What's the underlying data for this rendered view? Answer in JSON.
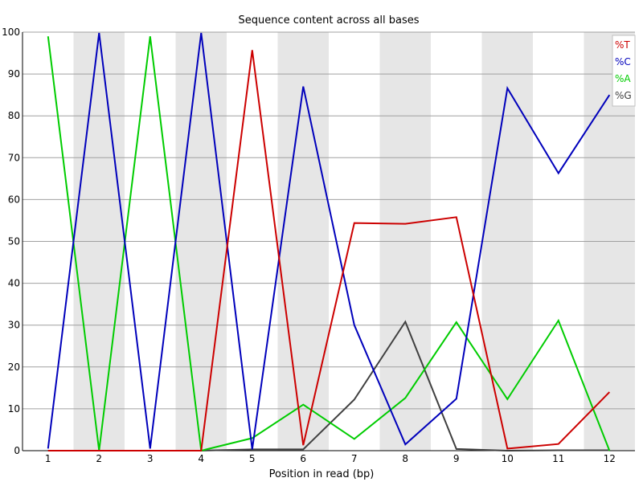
{
  "chart_data": {
    "type": "line",
    "title": "Sequence content across all bases",
    "xlabel": "Position in read (bp)",
    "ylabel": "",
    "x": [
      "1",
      "2",
      "3",
      "4",
      "5",
      "6",
      "7",
      "8",
      "9",
      "10",
      "11",
      "12"
    ],
    "ylim": [
      0,
      100
    ],
    "yticks": [
      "0",
      "10",
      "20",
      "30",
      "40",
      "50",
      "60",
      "70",
      "80",
      "90",
      "100"
    ],
    "grid": true,
    "legend_position": "top-right",
    "series": [
      {
        "name": "%T",
        "color": "#cc0000",
        "values": [
          0,
          0,
          0,
          0,
          95.7,
          1.3,
          54.4,
          54.2,
          55.8,
          0.5,
          1.6,
          14.0
        ]
      },
      {
        "name": "%C",
        "color": "#0000bb",
        "values": [
          0.5,
          99.8,
          0.5,
          99.8,
          0.3,
          87.0,
          30.0,
          1.5,
          12.4,
          86.6,
          66.3,
          85.0
        ]
      },
      {
        "name": "%A",
        "color": "#00cc00",
        "values": [
          99.0,
          0,
          99.0,
          0,
          3.0,
          11.0,
          2.8,
          12.6,
          30.7,
          12.3,
          31.1,
          0
        ]
      },
      {
        "name": "%G",
        "color": "#404040",
        "values": [
          0,
          0,
          0,
          0,
          0.3,
          0.3,
          12.2,
          30.8,
          0.4,
          0,
          0.1,
          0.1
        ]
      }
    ]
  }
}
